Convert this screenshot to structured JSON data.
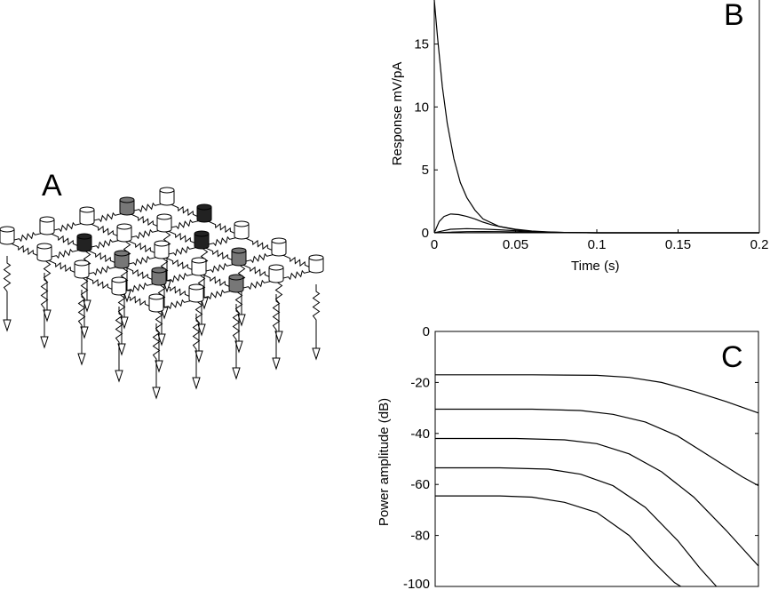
{
  "panels": {
    "A": {
      "letter": "A"
    },
    "B": {
      "letter": "B"
    },
    "C": {
      "letter": "C"
    }
  },
  "chart_data": [
    {
      "panel": "A",
      "type": "diagram",
      "description_items": [
        "cell-grid-network"
      ]
    },
    {
      "panel": "B",
      "type": "line",
      "title": "",
      "xlabel": "Time (s)",
      "ylabel": "Response mV/pA",
      "xlim": [
        0,
        0.2
      ],
      "ylim": [
        0,
        18.5
      ],
      "xticks": [
        0,
        0.05,
        0.1,
        0.15,
        0.2
      ],
      "xtick_labels": [
        "0",
        "0.05",
        "0.1",
        "0.15",
        "0.2"
      ],
      "yticks": [
        0,
        5,
        10,
        15
      ],
      "ytick_labels": [
        "0",
        "5",
        "10",
        "15"
      ],
      "grid": false,
      "series": [
        {
          "x": [
            0,
            0.002,
            0.005,
            0.008,
            0.012,
            0.016,
            0.02,
            0.025,
            0.03,
            0.04,
            0.05,
            0.06,
            0.07,
            0.08,
            0.1,
            0.15,
            0.2
          ],
          "y": [
            18.5,
            15.5,
            11.6,
            8.7,
            5.9,
            4.0,
            2.8,
            1.8,
            1.1,
            0.5,
            0.25,
            0.12,
            0.06,
            0.03,
            0.0,
            0.0,
            0.0
          ]
        },
        {
          "x": [
            0,
            0.003,
            0.006,
            0.01,
            0.015,
            0.02,
            0.025,
            0.03,
            0.035,
            0.04,
            0.05,
            0.06,
            0.07,
            0.08,
            0.1,
            0.15,
            0.2
          ],
          "y": [
            0,
            0.9,
            1.3,
            1.5,
            1.45,
            1.3,
            1.1,
            0.85,
            0.65,
            0.5,
            0.28,
            0.14,
            0.07,
            0.03,
            0.0,
            0.0,
            0.0
          ]
        },
        {
          "x": [
            0,
            0.005,
            0.01,
            0.02,
            0.03,
            0.04,
            0.05,
            0.06,
            0.07,
            0.08,
            0.1,
            0.15,
            0.2
          ],
          "y": [
            0,
            0.15,
            0.28,
            0.33,
            0.3,
            0.24,
            0.16,
            0.1,
            0.05,
            0.02,
            0.0,
            0.0,
            0.0
          ]
        },
        {
          "x": [
            0,
            0.01,
            0.02,
            0.03,
            0.04,
            0.05,
            0.06,
            0.07,
            0.08,
            0.1,
            0.15,
            0.2
          ],
          "y": [
            0,
            0.05,
            0.09,
            0.1,
            0.09,
            0.07,
            0.04,
            0.02,
            0.01,
            0.0,
            0.0,
            0.0
          ]
        }
      ]
    },
    {
      "panel": "C",
      "type": "line",
      "title": "",
      "xlabel": "",
      "ylabel": "Power amplitude (dB)",
      "ylim": [
        -100,
        0
      ],
      "xlim": [
        0,
        1
      ],
      "yticks": [
        0,
        -20,
        -40,
        -60,
        -80,
        -100
      ],
      "ytick_labels": [
        "0",
        "-20",
        "-40",
        "-60",
        "-80",
        "-100"
      ],
      "grid": false,
      "series": [
        {
          "x": [
            0,
            0.3,
            0.5,
            0.6,
            0.7,
            0.8,
            0.9,
            1.0
          ],
          "y": [
            -17,
            -17,
            -17.2,
            -18,
            -20,
            -23.5,
            -27.5,
            -32
          ]
        },
        {
          "x": [
            0,
            0.3,
            0.45,
            0.55,
            0.65,
            0.75,
            0.85,
            0.95,
            1.0
          ],
          "y": [
            -30.5,
            -30.5,
            -31,
            -32.5,
            -35.5,
            -41,
            -49,
            -57,
            -60.5
          ]
        },
        {
          "x": [
            0,
            0.25,
            0.4,
            0.5,
            0.6,
            0.7,
            0.8,
            0.9,
            1.0
          ],
          "y": [
            -42,
            -42,
            -42.5,
            -44,
            -48,
            -55,
            -65,
            -78,
            -92
          ]
        },
        {
          "x": [
            0,
            0.2,
            0.35,
            0.45,
            0.55,
            0.65,
            0.75,
            0.82,
            0.87
          ],
          "y": [
            -53.5,
            -53.5,
            -54,
            -56,
            -60.5,
            -69,
            -82,
            -93,
            -100
          ]
        },
        {
          "x": [
            0,
            0.2,
            0.3,
            0.4,
            0.5,
            0.6,
            0.68,
            0.74,
            0.76
          ],
          "y": [
            -64.5,
            -64.5,
            -65,
            -67,
            -71,
            -80,
            -91,
            -98.5,
            -100
          ]
        }
      ]
    }
  ]
}
